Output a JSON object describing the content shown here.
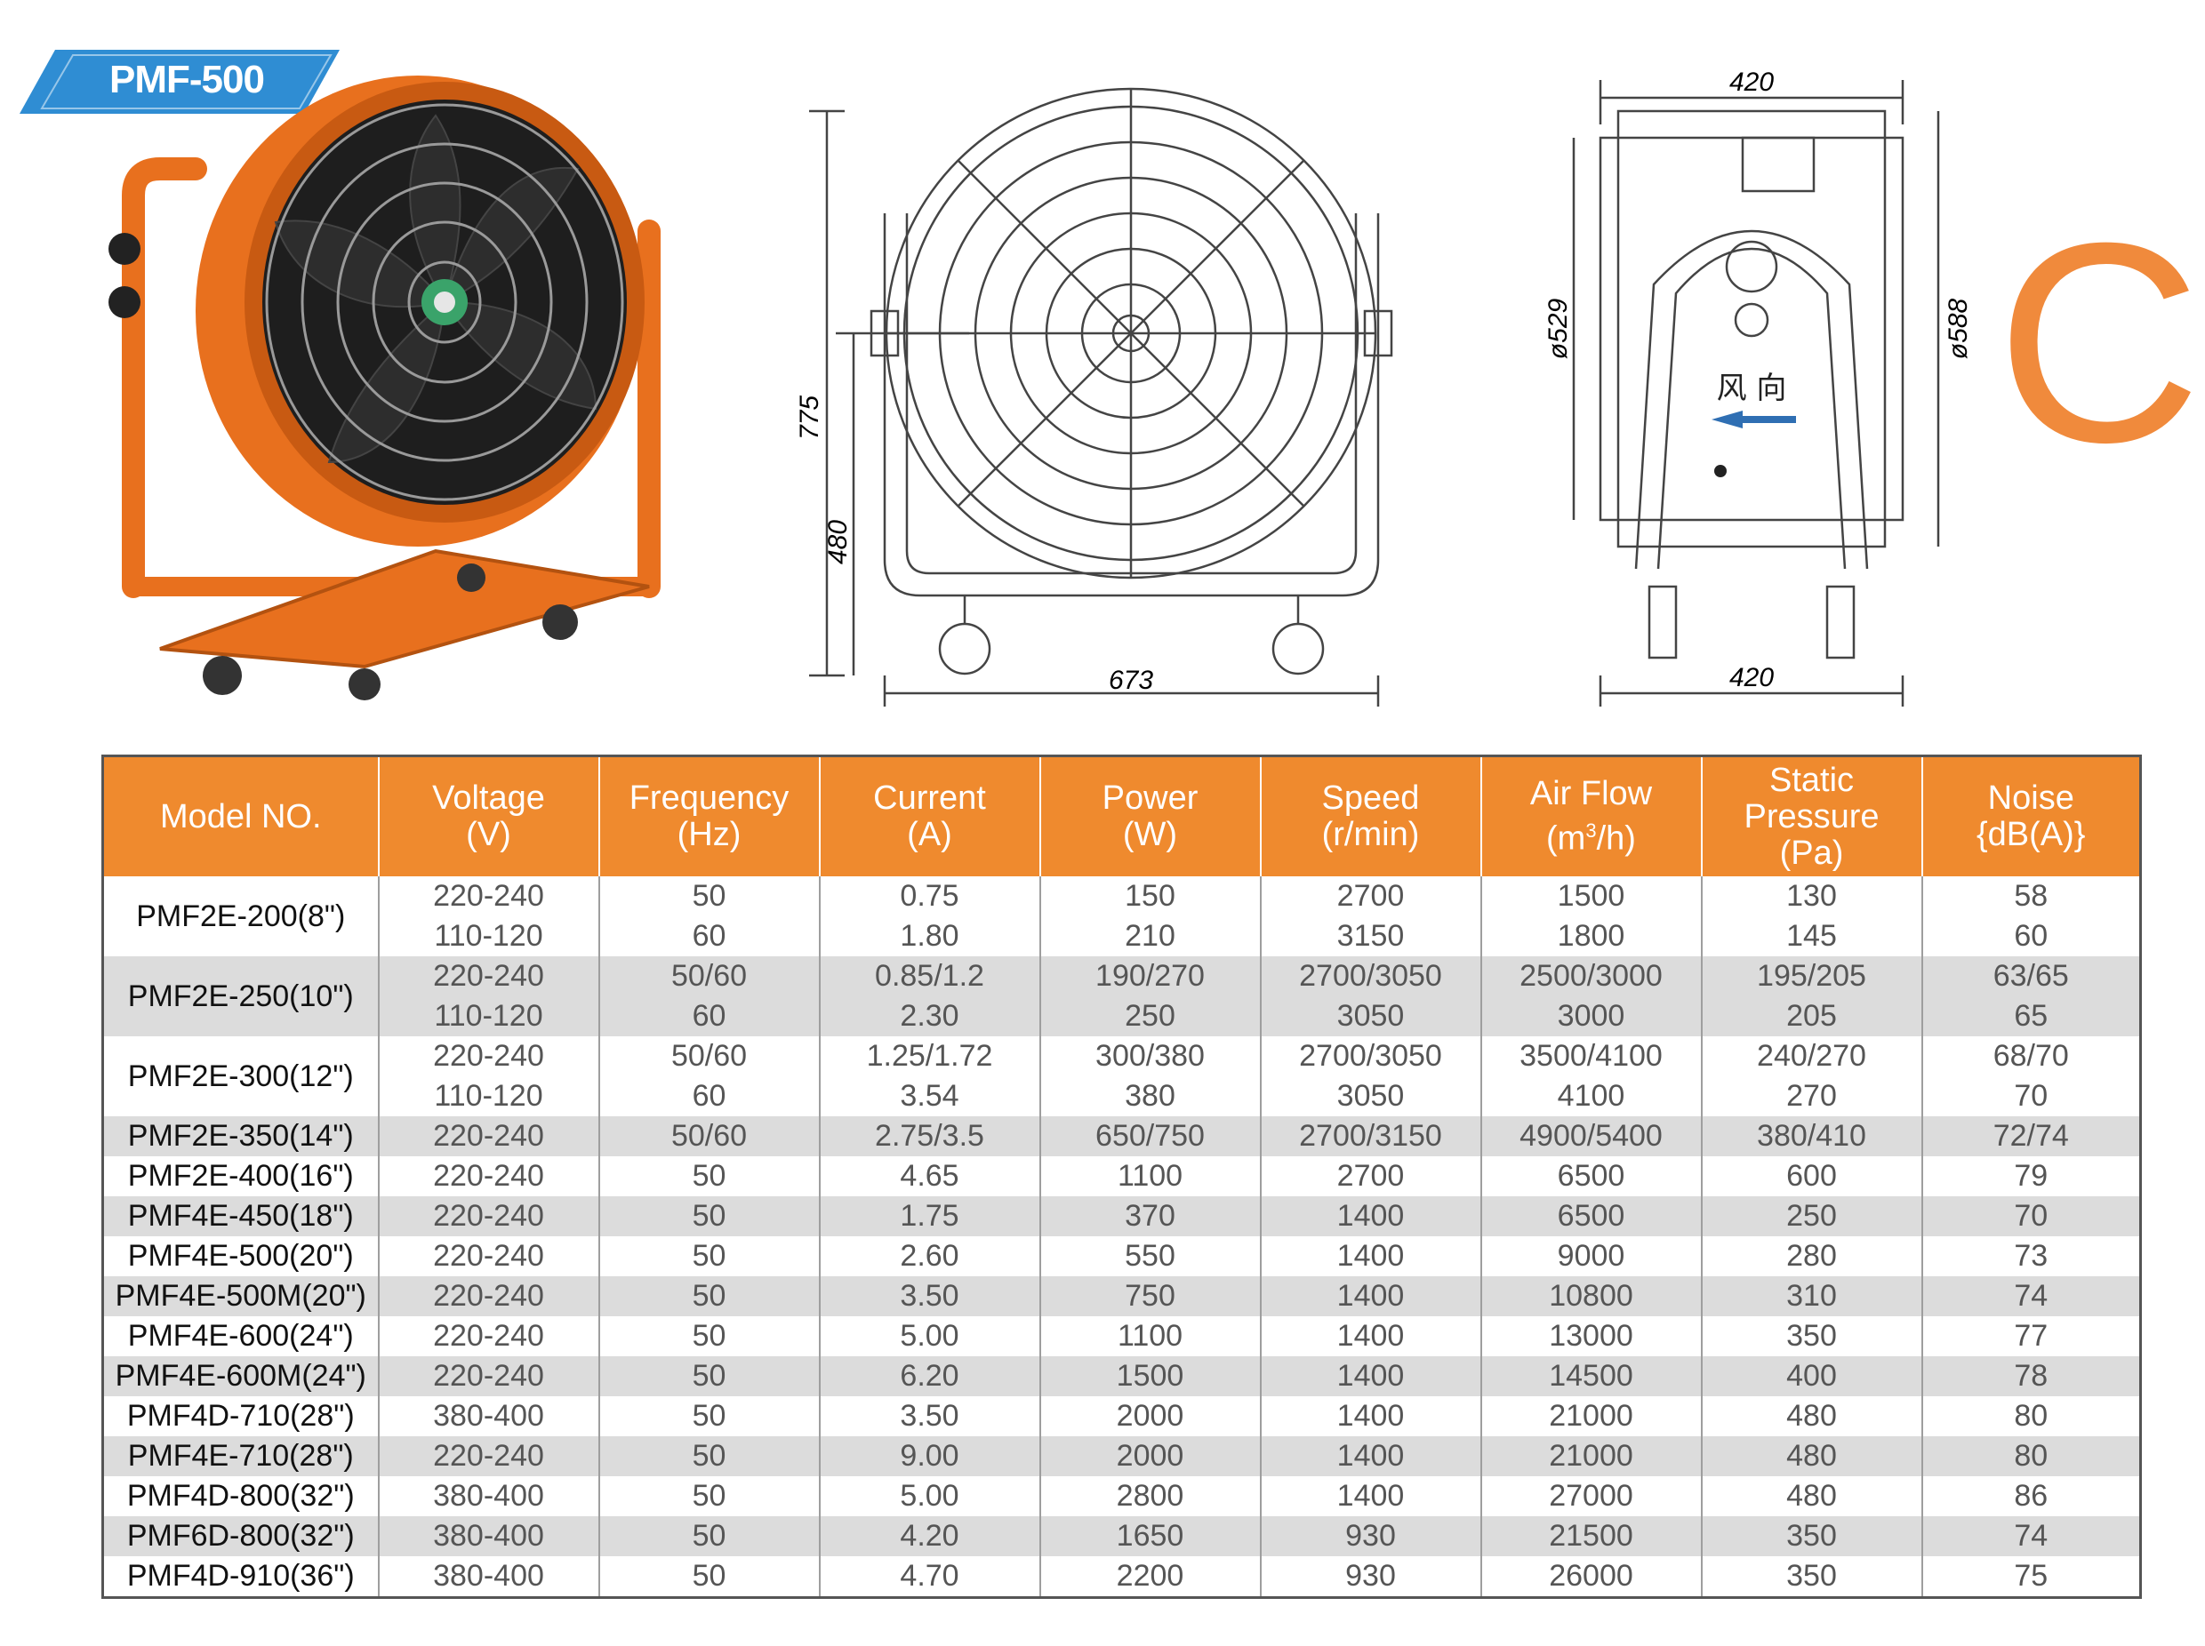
{
  "badge": {
    "label": "PMF-500",
    "color": "#2f8dd3"
  },
  "category_letter": {
    "text": "C",
    "color": "#f08a3c"
  },
  "front_view": {
    "dim_height": "775",
    "dim_lower": "480",
    "dim_width": "673"
  },
  "side_view": {
    "dim_top": "420",
    "dim_bottom": "420",
    "dim_inner": "ø529",
    "dim_outer": "ø588",
    "airflow_label": "风 向"
  },
  "table": {
    "header_color": "#ef8a2e",
    "headers": [
      {
        "line1": "Model NO.",
        "line2": "",
        "line3": ""
      },
      {
        "line1": "Voltage",
        "line2": "(V)",
        "line3": ""
      },
      {
        "line1": "Frequency",
        "line2": "(Hz)",
        "line3": ""
      },
      {
        "line1": "Current",
        "line2": "(A)",
        "line3": ""
      },
      {
        "line1": "Power",
        "line2": "(W)",
        "line3": ""
      },
      {
        "line1": "Speed",
        "line2": "(r/min)",
        "line3": ""
      },
      {
        "line1": "Air Flow",
        "line2": "(m",
        "sup": "3",
        "line2b": "/h)",
        "line3": ""
      },
      {
        "line1": "Static",
        "line2": "Pressure",
        "line3": "(Pa)"
      },
      {
        "line1": "Noise",
        "line2": "{dB(A)}",
        "line3": ""
      }
    ],
    "groups": [
      {
        "model": "PMF2E-200(8\")",
        "shade": false,
        "rows": [
          [
            "220-240",
            "50",
            "0.75",
            "150",
            "2700",
            "1500",
            "130",
            "58"
          ],
          [
            "110-120",
            "60",
            "1.80",
            "210",
            "3150",
            "1800",
            "145",
            "60"
          ]
        ]
      },
      {
        "model": "PMF2E-250(10\")",
        "shade": true,
        "rows": [
          [
            "220-240",
            "50/60",
            "0.85/1.2",
            "190/270",
            "2700/3050",
            "2500/3000",
            "195/205",
            "63/65"
          ],
          [
            "110-120",
            "60",
            "2.30",
            "250",
            "3050",
            "3000",
            "205",
            "65"
          ]
        ]
      },
      {
        "model": "PMF2E-300(12\")",
        "shade": false,
        "rows": [
          [
            "220-240",
            "50/60",
            "1.25/1.72",
            "300/380",
            "2700/3050",
            "3500/4100",
            "240/270",
            "68/70"
          ],
          [
            "110-120",
            "60",
            "3.54",
            "380",
            "3050",
            "4100",
            "270",
            "70"
          ]
        ]
      },
      {
        "model": "PMF2E-350(14\")",
        "shade": true,
        "rows": [
          [
            "220-240",
            "50/60",
            "2.75/3.5",
            "650/750",
            "2700/3150",
            "4900/5400",
            "380/410",
            "72/74"
          ]
        ]
      },
      {
        "model": "PMF2E-400(16\")",
        "shade": false,
        "rows": [
          [
            "220-240",
            "50",
            "4.65",
            "1100",
            "2700",
            "6500",
            "600",
            "79"
          ]
        ]
      },
      {
        "model": "PMF4E-450(18\")",
        "shade": true,
        "rows": [
          [
            "220-240",
            "50",
            "1.75",
            "370",
            "1400",
            "6500",
            "250",
            "70"
          ]
        ]
      },
      {
        "model": "PMF4E-500(20\")",
        "shade": false,
        "rows": [
          [
            "220-240",
            "50",
            "2.60",
            "550",
            "1400",
            "9000",
            "280",
            "73"
          ]
        ]
      },
      {
        "model": "PMF4E-500M(20\")",
        "shade": true,
        "rows": [
          [
            "220-240",
            "50",
            "3.50",
            "750",
            "1400",
            "10800",
            "310",
            "74"
          ]
        ]
      },
      {
        "model": "PMF4E-600(24\")",
        "shade": false,
        "rows": [
          [
            "220-240",
            "50",
            "5.00",
            "1100",
            "1400",
            "13000",
            "350",
            "77"
          ]
        ]
      },
      {
        "model": "PMF4E-600M(24\")",
        "shade": true,
        "rows": [
          [
            "220-240",
            "50",
            "6.20",
            "1500",
            "1400",
            "14500",
            "400",
            "78"
          ]
        ]
      },
      {
        "model": "PMF4D-710(28\")",
        "shade": false,
        "rows": [
          [
            "380-400",
            "50",
            "3.50",
            "2000",
            "1400",
            "21000",
            "480",
            "80"
          ]
        ]
      },
      {
        "model": "PMF4E-710(28\")",
        "shade": true,
        "rows": [
          [
            "220-240",
            "50",
            "9.00",
            "2000",
            "1400",
            "21000",
            "480",
            "80"
          ]
        ]
      },
      {
        "model": "PMF4D-800(32\")",
        "shade": false,
        "rows": [
          [
            "380-400",
            "50",
            "5.00",
            "2800",
            "1400",
            "27000",
            "480",
            "86"
          ]
        ]
      },
      {
        "model": "PMF6D-800(32\")",
        "shade": true,
        "rows": [
          [
            "380-400",
            "50",
            "4.20",
            "1650",
            "930",
            "21500",
            "350",
            "74"
          ]
        ]
      },
      {
        "model": "PMF4D-910(36\")",
        "shade": false,
        "rows": [
          [
            "380-400",
            "50",
            "4.70",
            "2200",
            "930",
            "26000",
            "350",
            "75"
          ]
        ]
      }
    ]
  }
}
